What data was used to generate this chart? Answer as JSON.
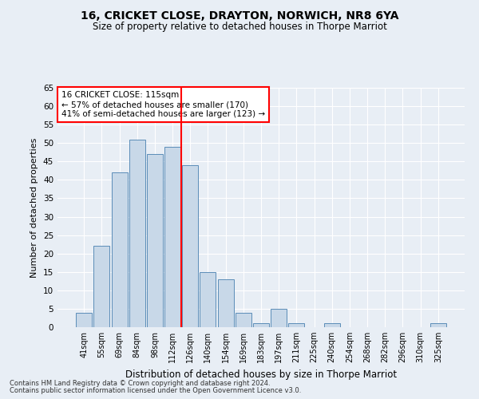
{
  "title1": "16, CRICKET CLOSE, DRAYTON, NORWICH, NR8 6YA",
  "title2": "Size of property relative to detached houses in Thorpe Marriot",
  "xlabel": "Distribution of detached houses by size in Thorpe Marriot",
  "ylabel": "Number of detached properties",
  "footnote1": "Contains HM Land Registry data © Crown copyright and database right 2024.",
  "footnote2": "Contains public sector information licensed under the Open Government Licence v3.0.",
  "bar_labels": [
    "41sqm",
    "55sqm",
    "69sqm",
    "84sqm",
    "98sqm",
    "112sqm",
    "126sqm",
    "140sqm",
    "154sqm",
    "169sqm",
    "183sqm",
    "197sqm",
    "211sqm",
    "225sqm",
    "240sqm",
    "254sqm",
    "268sqm",
    "282sqm",
    "296sqm",
    "310sqm",
    "325sqm"
  ],
  "bar_values": [
    4,
    22,
    42,
    51,
    47,
    49,
    44,
    15,
    13,
    4,
    1,
    5,
    1,
    0,
    1,
    0,
    0,
    0,
    0,
    0,
    1
  ],
  "bar_color": "#c8d8e8",
  "bar_edge_color": "#5b8db8",
  "vline_x": 5.5,
  "vline_color": "red",
  "ylim": [
    0,
    65
  ],
  "yticks": [
    0,
    5,
    10,
    15,
    20,
    25,
    30,
    35,
    40,
    45,
    50,
    55,
    60,
    65
  ],
  "annotation_title": "16 CRICKET CLOSE: 115sqm",
  "annotation_line1": "← 57% of detached houses are smaller (170)",
  "annotation_line2": "41% of semi-detached houses are larger (123) →",
  "annotation_box_color": "white",
  "annotation_box_edge": "red",
  "bg_color": "#e8eef5"
}
